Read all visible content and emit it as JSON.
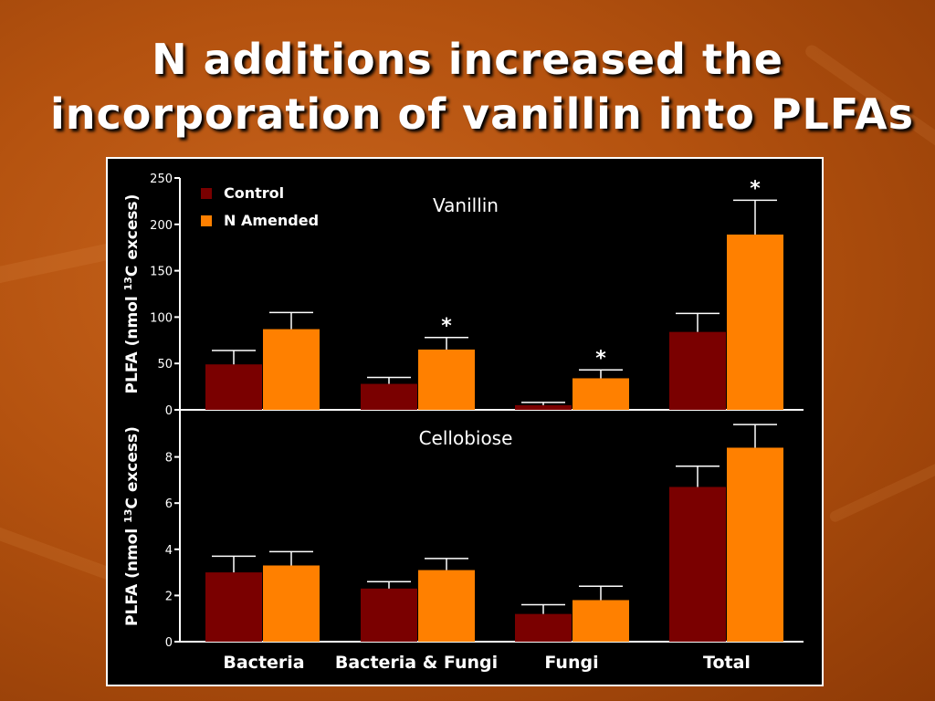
{
  "slide": {
    "title_line1": "N additions increased the",
    "title_line2": "incorporation of vanillin into PLFAs"
  },
  "colors": {
    "control": "#7a0000",
    "n_amended": "#ff8000",
    "background": "#b4520f",
    "panel": "#000000"
  },
  "chart_data": [
    {
      "type": "bar",
      "title": "Vanillin",
      "ylabel": "PLFA (nmol 13C excess)",
      "ylim": [
        0,
        250
      ],
      "yticks": [
        0,
        50,
        100,
        150,
        200,
        250
      ],
      "categories": [
        "Bacteria",
        "Bacteria & Fungi",
        "Fungi",
        "Total"
      ],
      "series": [
        {
          "name": "Control",
          "values": [
            49,
            28,
            5,
            84
          ],
          "errors": [
            15,
            7,
            3,
            20
          ]
        },
        {
          "name": "N Amended",
          "values": [
            87,
            65,
            34,
            189
          ],
          "errors": [
            18,
            13,
            9,
            37
          ]
        }
      ],
      "significance": [
        "",
        "*",
        "*",
        "*"
      ],
      "legend": {
        "position": "top-left",
        "entries": [
          "Control",
          "N Amended"
        ]
      },
      "grid": false
    },
    {
      "type": "bar",
      "title": "Cellobiose",
      "ylabel": "PLFA (nmol 13C excess)",
      "ylim": [
        0,
        10
      ],
      "yticks": [
        0,
        2,
        4,
        6,
        8
      ],
      "categories": [
        "Bacteria",
        "Bacteria & Fungi",
        "Fungi",
        "Total"
      ],
      "series": [
        {
          "name": "Control",
          "values": [
            3.0,
            2.3,
            1.2,
            6.7
          ],
          "errors": [
            0.7,
            0.3,
            0.4,
            0.9
          ]
        },
        {
          "name": "N Amended",
          "values": [
            3.3,
            3.1,
            1.8,
            8.4
          ],
          "errors": [
            0.6,
            0.5,
            0.6,
            1.0
          ]
        }
      ],
      "grid": false
    }
  ]
}
